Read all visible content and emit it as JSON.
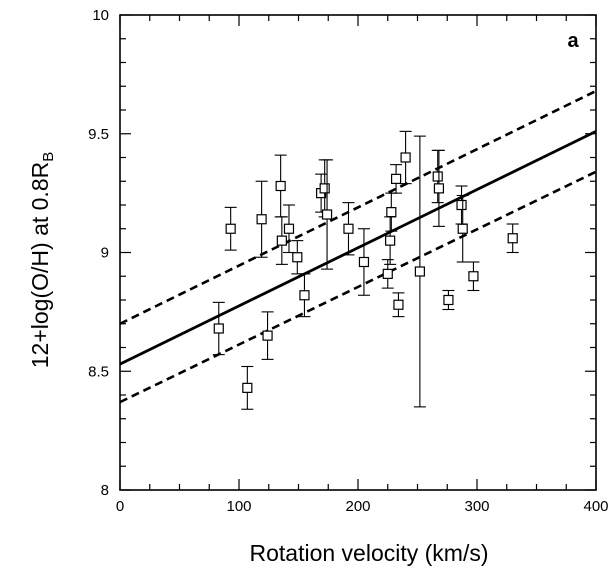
{
  "chart_data": {
    "type": "scatter",
    "panel_label": "a",
    "xlabel": "Rotation velocity (km/s)",
    "ylabel": "12+log(O/H)  at  0.8R",
    "ylabel_sub": "B",
    "xlim": [
      0,
      400
    ],
    "ylim": [
      8,
      10
    ],
    "xticks": [
      0,
      100,
      200,
      300,
      400
    ],
    "yticks": [
      8,
      8.5,
      9,
      9.5,
      10
    ],
    "ytick_labels": [
      "8",
      "8.5",
      "9",
      "9.5",
      "10"
    ],
    "grid": false,
    "points": [
      {
        "x": 83,
        "y": 8.68,
        "err": 0.11
      },
      {
        "x": 93,
        "y": 9.1,
        "err": 0.09
      },
      {
        "x": 107,
        "y": 8.43,
        "err": 0.09
      },
      {
        "x": 119,
        "y": 9.14,
        "err": 0.16
      },
      {
        "x": 124,
        "y": 8.65,
        "err": 0.1
      },
      {
        "x": 135,
        "y": 9.28,
        "err": 0.13
      },
      {
        "x": 136,
        "y": 9.05,
        "err": 0.1
      },
      {
        "x": 142,
        "y": 9.1,
        "err": 0.1
      },
      {
        "x": 149,
        "y": 8.98,
        "err": 0.07
      },
      {
        "x": 155,
        "y": 8.82,
        "err": 0.09
      },
      {
        "x": 169,
        "y": 9.25,
        "err": 0.08
      },
      {
        "x": 172,
        "y": 9.27,
        "err": 0.12
      },
      {
        "x": 174,
        "y": 9.16,
        "err": 0.23
      },
      {
        "x": 192,
        "y": 9.1,
        "err": 0.11
      },
      {
        "x": 205,
        "y": 8.96,
        "err": 0.14
      },
      {
        "x": 225,
        "y": 8.91,
        "err": 0.06
      },
      {
        "x": 227,
        "y": 9.05,
        "err": 0.1
      },
      {
        "x": 228,
        "y": 9.17,
        "err": 0.08
      },
      {
        "x": 232,
        "y": 9.31,
        "err": 0.06
      },
      {
        "x": 234,
        "y": 8.78,
        "err": 0.05
      },
      {
        "x": 240,
        "y": 9.4,
        "err": 0.11
      },
      {
        "x": 252,
        "y": 8.92,
        "err": 0.57
      },
      {
        "x": 267,
        "y": 9.32,
        "err": 0.11
      },
      {
        "x": 268,
        "y": 9.27,
        "err": 0.16
      },
      {
        "x": 276,
        "y": 8.8,
        "err": 0.04
      },
      {
        "x": 287,
        "y": 9.2,
        "err": 0.08
      },
      {
        "x": 288,
        "y": 9.1,
        "err": 0.14
      },
      {
        "x": 297,
        "y": 8.9,
        "err": 0.06
      },
      {
        "x": 330,
        "y": 9.06,
        "err": 0.06
      }
    ],
    "fit_line": {
      "style": "solid",
      "y_at_x0": 8.53,
      "y_at_x400": 9.51
    },
    "bound_lines": [
      {
        "style": "dashed",
        "y_at_x0": 8.7,
        "y_at_x400": 9.68
      },
      {
        "style": "dashed",
        "y_at_x0": 8.37,
        "y_at_x400": 9.34
      }
    ]
  }
}
